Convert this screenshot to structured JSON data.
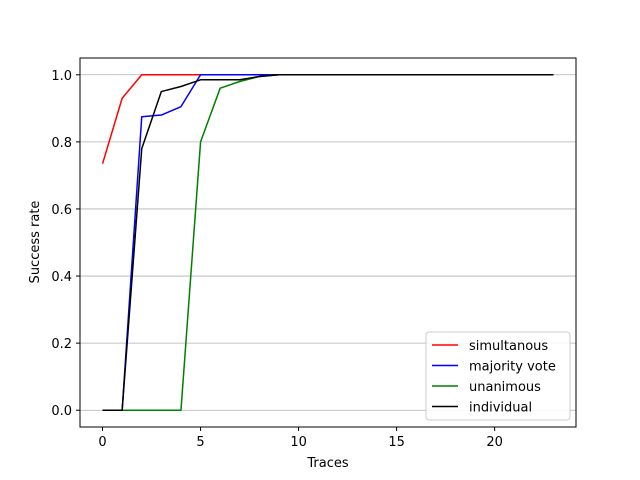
{
  "chart_data": {
    "type": "line",
    "title": "",
    "xlabel": "Traces",
    "ylabel": "Success rate",
    "xlim": [
      -1.15,
      24.15
    ],
    "ylim": [
      -0.05,
      1.05
    ],
    "xticks": [
      0,
      5,
      10,
      15,
      20
    ],
    "xtick_labels": [
      "0",
      "5",
      "10",
      "15",
      "20"
    ],
    "yticks": [
      0.0,
      0.2,
      0.4,
      0.6,
      0.8,
      1.0
    ],
    "ytick_labels": [
      "0.0",
      "0.2",
      "0.4",
      "0.6",
      "0.8",
      "1.0"
    ],
    "grid": "horizontal",
    "legend_position": "lower-right",
    "x": [
      0,
      1,
      2,
      3,
      4,
      5,
      6,
      7,
      8,
      9,
      10,
      11,
      12,
      13,
      14,
      15,
      16,
      17,
      18,
      19,
      20,
      21,
      22,
      23
    ],
    "series": [
      {
        "name": "simultanous",
        "color": "#ff0000",
        "values": [
          0.735,
          0.93,
          1.0,
          1.0,
          1.0,
          1.0,
          1.0,
          1.0,
          1.0,
          1.0,
          1.0,
          1.0,
          1.0,
          1.0,
          1.0,
          1.0,
          1.0,
          1.0,
          1.0,
          1.0,
          1.0,
          1.0,
          1.0,
          1.0
        ]
      },
      {
        "name": "majority vote",
        "color": "#0000ff",
        "values": [
          0.0,
          0.0,
          0.875,
          0.88,
          0.905,
          1.0,
          1.0,
          1.0,
          1.0,
          1.0,
          1.0,
          1.0,
          1.0,
          1.0,
          1.0,
          1.0,
          1.0,
          1.0,
          1.0,
          1.0,
          1.0,
          1.0,
          1.0,
          1.0
        ]
      },
      {
        "name": "unanimous",
        "color": "#008000",
        "values": [
          0.0,
          0.0,
          0.0,
          0.0,
          0.0,
          0.8,
          0.96,
          0.98,
          0.995,
          1.0,
          1.0,
          1.0,
          1.0,
          1.0,
          1.0,
          1.0,
          1.0,
          1.0,
          1.0,
          1.0,
          1.0,
          1.0,
          1.0,
          1.0
        ]
      },
      {
        "name": "individual",
        "color": "#000000",
        "values": [
          0.0,
          0.0,
          0.78,
          0.95,
          0.965,
          0.985,
          0.985,
          0.985,
          0.995,
          1.0,
          1.0,
          1.0,
          1.0,
          1.0,
          1.0,
          1.0,
          1.0,
          1.0,
          1.0,
          1.0,
          1.0,
          1.0,
          1.0,
          1.0
        ]
      }
    ]
  }
}
